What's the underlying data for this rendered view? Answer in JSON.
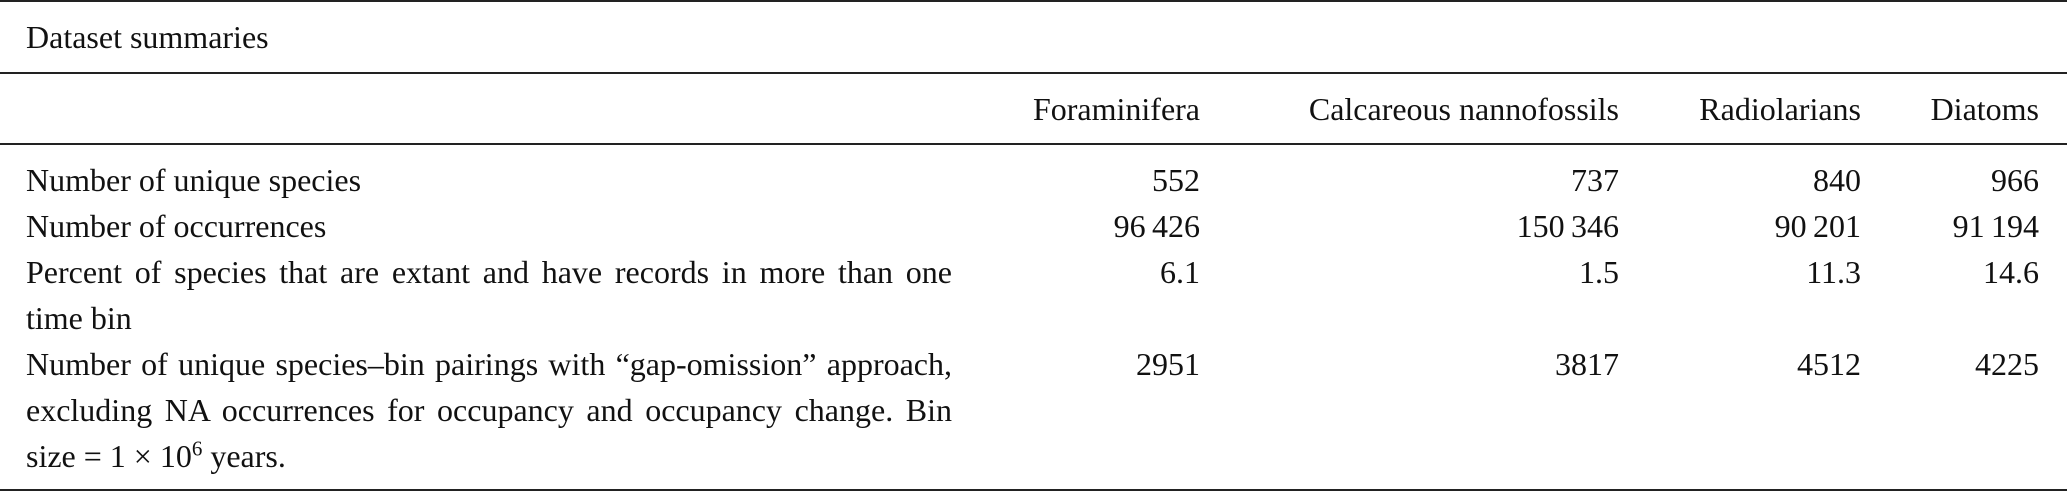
{
  "title": "Dataset summaries",
  "table": {
    "header": [
      "Foraminifera",
      "Calcareous nannofossils",
      "Radiolarians",
      "Diatoms"
    ],
    "rows": [
      {
        "label": "Number of unique species",
        "values": [
          "552",
          "737",
          "840",
          "966"
        ]
      },
      {
        "label": "Number of occurrences",
        "values": [
          "96 426",
          "150 346",
          "90 201",
          "91 194"
        ]
      },
      {
        "label": "Percent of species that are extant and have records in more than one time bin",
        "values": [
          "6.1",
          "1.5",
          "11.3",
          "14.6"
        ]
      },
      {
        "label": "Number of unique species–bin pairings with “gap-omission” approach, excluding NA occurrences for occupancy and oc­cupancy change. Bin size = 1 × 10",
        "label_sup": "6",
        "label_tail": " years.",
        "values": [
          "2951",
          "3817",
          "4512",
          "4225"
        ]
      }
    ]
  }
}
